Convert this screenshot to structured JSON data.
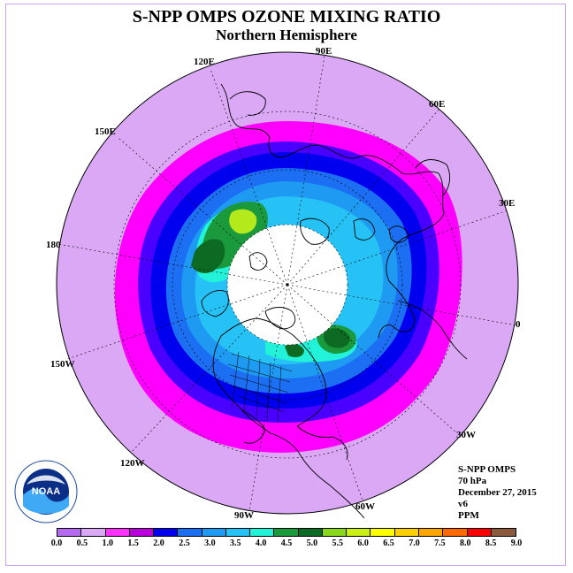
{
  "title": "S-NPP OMPS OZONE MIXING RATIO",
  "subtitle": "Northern Hemisphere",
  "longitude_labels": [
    "90E",
    "60E",
    "30E",
    "0",
    "30W",
    "60W",
    "90W",
    "120W",
    "150W",
    "180",
    "150E",
    "120E"
  ],
  "info": {
    "instrument": "S-NPP OMPS",
    "pressure": "70 hPa",
    "date": "December 27, 2015",
    "version": "v6",
    "units": "PPM"
  },
  "logo_text": "NOAA",
  "colorbar": {
    "ticks": [
      "0.0",
      "0.5",
      "1.0",
      "1.5",
      "2.0",
      "2.5",
      "3.0",
      "3.5",
      "4.0",
      "4.5",
      "5.0",
      "5.5",
      "6.0",
      "6.5",
      "7.0",
      "7.5",
      "8.0",
      "8.5",
      "9.0"
    ],
    "colors": [
      "#b56af0",
      "#dba8f5",
      "#ff33ff",
      "#bb00dd",
      "#0000ee",
      "#1c6ef2",
      "#1e9af2",
      "#26c2f6",
      "#22f2d8",
      "#1a9a3c",
      "#0c6a22",
      "#8ad81a",
      "#c8f012",
      "#ffff00",
      "#ffd000",
      "#ffa500",
      "#ff6a00",
      "#ff0000",
      "#8b5a3c"
    ]
  },
  "map_colors": {
    "outer": "#dba8f5",
    "band_magenta": "#ff00ff",
    "band_purple": "#4a00ff",
    "band_blue": "#0000ee",
    "band_blue2": "#1c6ef2",
    "band_blue3": "#1e9af2",
    "band_cyan": "#26c2f6",
    "band_teal": "#22f2d8",
    "green": "#1a9a3c",
    "dark_green": "#0c6a22",
    "lime": "#b4ea1c"
  }
}
